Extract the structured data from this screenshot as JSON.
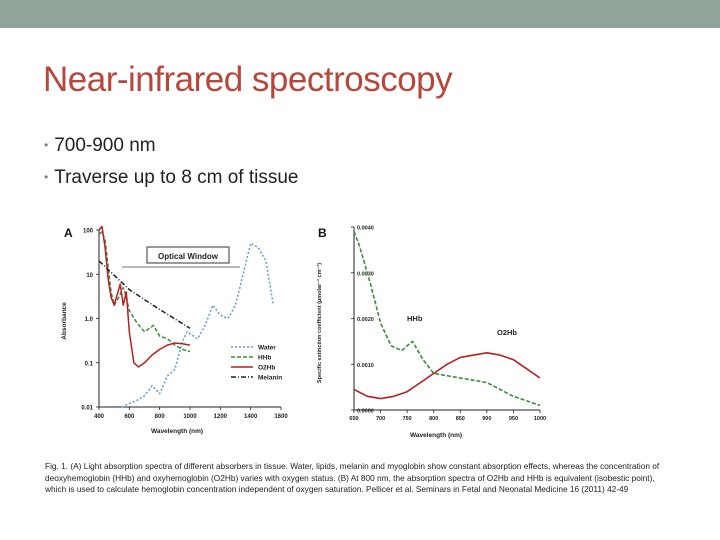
{
  "slide": {
    "title": "Near-infrared spectroscopy",
    "bullets": [
      "700-900 nm",
      "Traverse up to 8 cm of tissue"
    ],
    "caption": "Fig. 1. (A) Light absorption spectra of different absorbers in tissue. Water, lipids, melanin and myoglobin show constant absorption effects, whereas the concentration of deoxyhemoglobin (HHb) and oxyhemoglobin (O2Hb) varies with oxygen status. (B) At 800 nm, the absorption spectra of O2Hb and HHb is equivalent (isobestic point), which is used to calculate hemoglobin concentration independent of oxygen saturation. Pellicer et al. Seminars in Fetal and Neonatal Medicine 16 (2011) 42-49"
  },
  "chart_data": [
    {
      "type": "line",
      "panel_label": "A",
      "annotation": "Optical Window",
      "xlabel": "Wavelength (nm)",
      "ylabel": "Absorbance",
      "y_scale": "log",
      "x_ticks": [
        "400",
        "600",
        "800",
        "1000",
        "1200",
        "1400",
        "1600"
      ],
      "y_ticks": [
        "0.01",
        "0.1",
        "1.0",
        "10",
        "100"
      ],
      "xlim": [
        400,
        1600
      ],
      "ylim": [
        0.01,
        100
      ],
      "legend_position": "bottom-right",
      "series": [
        {
          "name": "Water",
          "color": "#5b9bd5",
          "style": "dotted",
          "x": [
            550,
            600,
            650,
            700,
            750,
            800,
            850,
            900,
            950,
            980,
            1000,
            1050,
            1100,
            1150,
            1200,
            1250,
            1300,
            1350,
            1400,
            1450,
            1500,
            1550
          ],
          "y": [
            0.01,
            0.012,
            0.014,
            0.018,
            0.03,
            0.02,
            0.05,
            0.07,
            0.3,
            0.5,
            0.45,
            0.35,
            0.7,
            2.0,
            1.2,
            1.0,
            2.0,
            10,
            50,
            40,
            20,
            2
          ]
        },
        {
          "name": "HHb",
          "color": "#3c8c3c",
          "style": "dashed",
          "x": [
            400,
            420,
            440,
            460,
            480,
            500,
            530,
            560,
            580,
            600,
            650,
            700,
            760,
            800,
            850,
            900,
            950,
            1000
          ],
          "y": [
            80,
            90,
            60,
            15,
            4,
            2,
            3,
            5,
            3,
            1.5,
            0.8,
            0.5,
            0.7,
            0.4,
            0.35,
            0.25,
            0.2,
            0.18
          ]
        },
        {
          "name": "O2Hb",
          "color": "#b22222",
          "style": "solid",
          "x": [
            400,
            420,
            440,
            460,
            480,
            500,
            540,
            560,
            580,
            600,
            630,
            660,
            700,
            750,
            800,
            850,
            900,
            950,
            1000
          ],
          "y": [
            100,
            120,
            40,
            8,
            3,
            2,
            6,
            2,
            4,
            0.5,
            0.1,
            0.08,
            0.1,
            0.15,
            0.2,
            0.25,
            0.28,
            0.27,
            0.25
          ]
        },
        {
          "name": "Melanin",
          "color": "#222222",
          "style": "dashdot",
          "x": [
            400,
            600,
            800,
            1000
          ],
          "y": [
            20,
            4.5,
            1.6,
            0.6
          ]
        }
      ]
    },
    {
      "type": "line",
      "panel_label": "B",
      "xlabel": "Wavelength (nm)",
      "ylabel": "Specific extinction coefficient (μmolar⁻¹ cm⁻¹)",
      "x_ticks": [
        "650",
        "700",
        "750",
        "800",
        "850",
        "900",
        "950",
        "1000"
      ],
      "y_ticks": [
        "0.0000",
        "0.0010",
        "0.0020",
        "0.0030",
        "0.0040"
      ],
      "xlim": [
        650,
        1000
      ],
      "ylim": [
        0,
        0.004
      ],
      "series": [
        {
          "name": "HHb",
          "color": "#3c8c3c",
          "style": "dashed",
          "x": [
            650,
            660,
            680,
            700,
            720,
            740,
            750,
            760,
            780,
            800,
            850,
            900,
            950,
            1000
          ],
          "y": [
            0.0039,
            0.0036,
            0.0028,
            0.0019,
            0.0014,
            0.0013,
            0.0014,
            0.0015,
            0.0011,
            0.0008,
            0.0007,
            0.0006,
            0.0003,
            0.0001
          ]
        },
        {
          "name": "O2Hb",
          "color": "#b22222",
          "style": "solid",
          "x": [
            650,
            675,
            700,
            725,
            750,
            775,
            800,
            825,
            850,
            875,
            900,
            925,
            950,
            975,
            1000
          ],
          "y": [
            0.00045,
            0.0003,
            0.00025,
            0.0003,
            0.0004,
            0.0006,
            0.0008,
            0.001,
            0.00115,
            0.0012,
            0.00125,
            0.0012,
            0.0011,
            0.0009,
            0.0007
          ]
        }
      ]
    }
  ]
}
